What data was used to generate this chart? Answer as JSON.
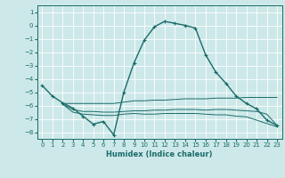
{
  "xlabel": "Humidex (Indice chaleur)",
  "ylabel": "",
  "xlim": [
    -0.5,
    23.5
  ],
  "ylim": [
    -8.5,
    1.5
  ],
  "yticks": [
    1,
    0,
    -1,
    -2,
    -3,
    -4,
    -5,
    -6,
    -7,
    -8
  ],
  "xticks": [
    0,
    1,
    2,
    3,
    4,
    5,
    6,
    7,
    8,
    9,
    10,
    11,
    12,
    13,
    14,
    15,
    16,
    17,
    18,
    19,
    20,
    21,
    22,
    23
  ],
  "bg_color": "#cde8e8",
  "line_color": "#1a6b6b",
  "grid_color": "#ffffff",
  "lines": [
    {
      "x": [
        0,
        1,
        2,
        3,
        4,
        5,
        6,
        7,
        8,
        9,
        10,
        11,
        12,
        13,
        14,
        15,
        16,
        17,
        18,
        19,
        20,
        21,
        22,
        23
      ],
      "y": [
        -4.5,
        -5.3,
        -5.8,
        -6.2,
        -6.8,
        -7.4,
        -7.2,
        -8.2,
        -5.0,
        -2.8,
        -1.1,
        -0.1,
        0.3,
        0.15,
        0.0,
        -0.2,
        -2.2,
        -3.5,
        -4.35,
        -5.3,
        -5.85,
        -6.25,
        -7.1,
        -7.5
      ],
      "marker": "+",
      "lw": 1.0
    },
    {
      "x": [
        2,
        3,
        4,
        5,
        6,
        7,
        8,
        9,
        10,
        11,
        12,
        13,
        14,
        15,
        16,
        17,
        18,
        19,
        20,
        21,
        22,
        23
      ],
      "y": [
        -5.85,
        -5.85,
        -5.85,
        -5.85,
        -5.85,
        -5.85,
        -5.75,
        -5.65,
        -5.65,
        -5.6,
        -5.6,
        -5.55,
        -5.5,
        -5.5,
        -5.5,
        -5.45,
        -5.45,
        -5.45,
        -5.4,
        -5.4,
        -5.4,
        -5.4
      ],
      "marker": null,
      "lw": 0.7
    },
    {
      "x": [
        2,
        3,
        4,
        5,
        6,
        7,
        8,
        9,
        10,
        11,
        12,
        13,
        14,
        15,
        16,
        17,
        18,
        19,
        20,
        21,
        22,
        23
      ],
      "y": [
        -5.9,
        -6.3,
        -6.45,
        -6.45,
        -6.5,
        -6.5,
        -6.45,
        -6.4,
        -6.4,
        -6.35,
        -6.35,
        -6.3,
        -6.3,
        -6.3,
        -6.35,
        -6.3,
        -6.3,
        -6.35,
        -6.4,
        -6.45,
        -6.65,
        -7.5
      ],
      "marker": null,
      "lw": 0.7
    },
    {
      "x": [
        2,
        3,
        4,
        5,
        6,
        7,
        8,
        9,
        10,
        11,
        12,
        13,
        14,
        15,
        16,
        17,
        18,
        19,
        20,
        21,
        22,
        23
      ],
      "y": [
        -5.9,
        -6.5,
        -6.65,
        -6.7,
        -6.75,
        -6.75,
        -6.65,
        -6.6,
        -6.65,
        -6.65,
        -6.6,
        -6.6,
        -6.6,
        -6.6,
        -6.65,
        -6.7,
        -6.7,
        -6.8,
        -6.85,
        -7.1,
        -7.35,
        -7.6
      ],
      "marker": null,
      "lw": 0.7
    }
  ]
}
